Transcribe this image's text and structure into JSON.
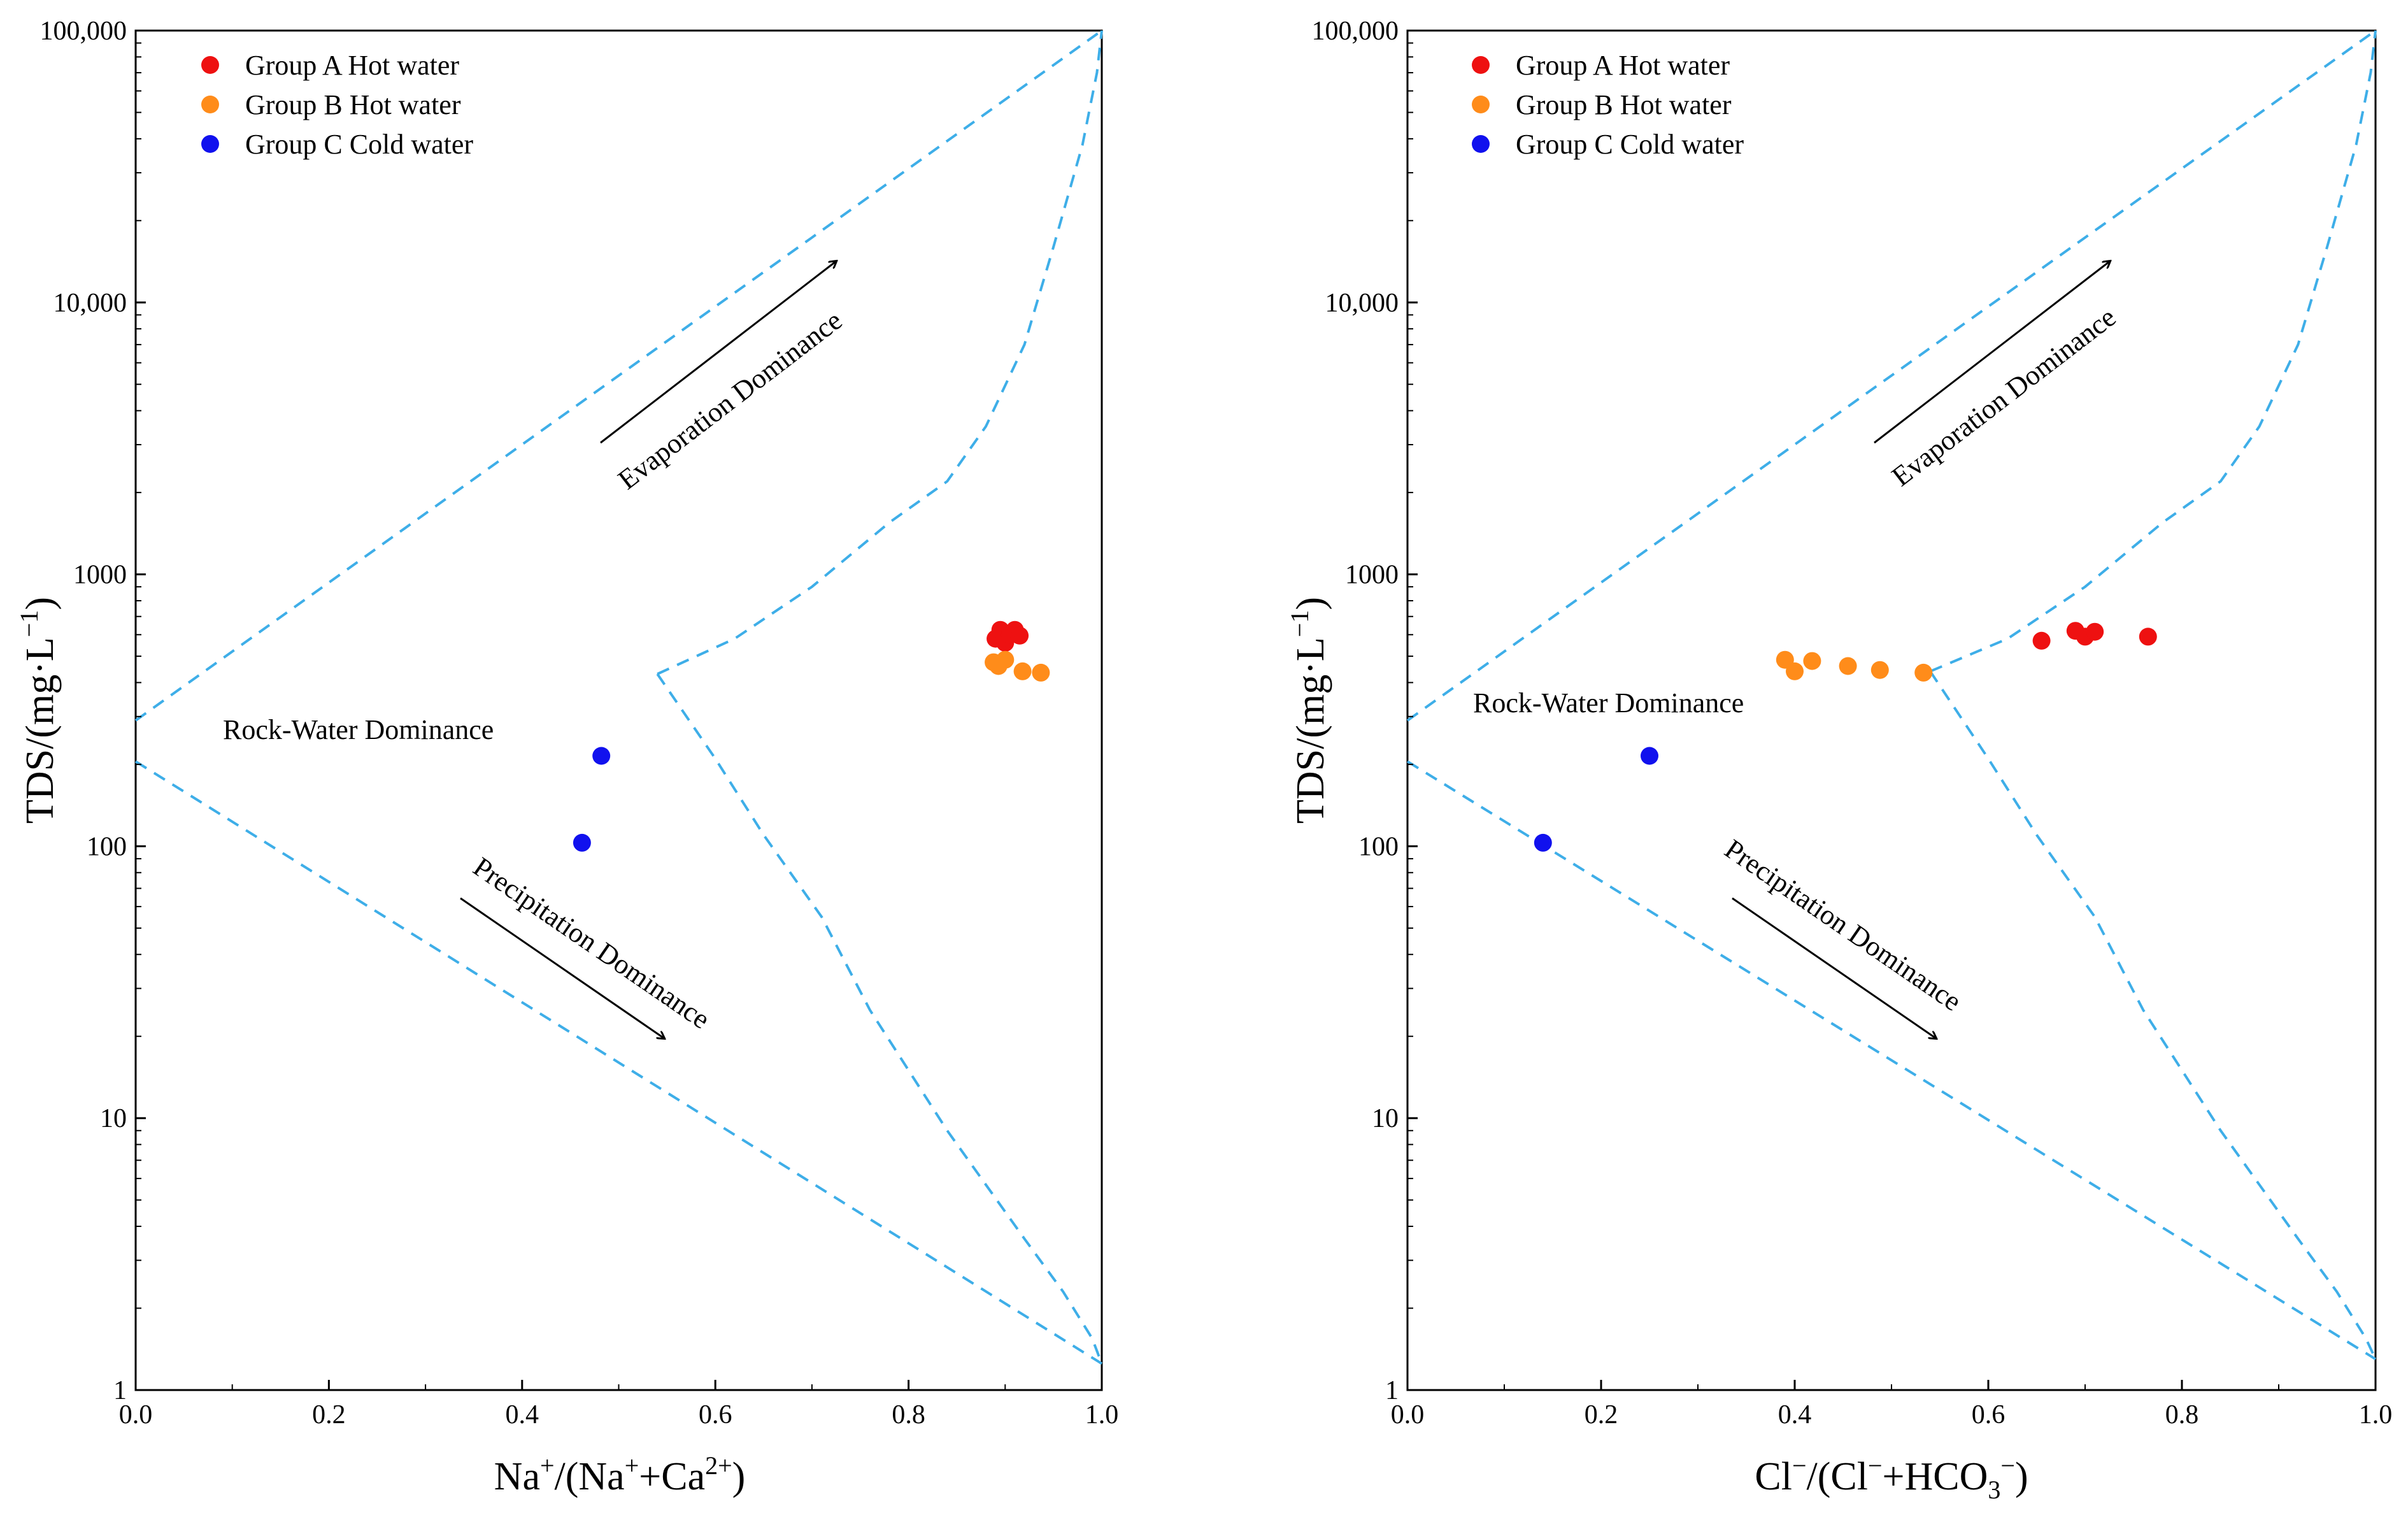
{
  "chart_data": [
    {
      "type": "scatter",
      "title": "",
      "xlabel": {
        "base": "Na",
        "sup1": "+",
        "mid": "/(Na",
        "sup2": "+",
        "mid2": "+Ca",
        "sup3": "2+",
        "end": ")"
      },
      "ylabel": {
        "base": "TDS/(mg·L",
        "sup": "−1",
        "end": ")"
      },
      "xlim": [
        0,
        1
      ],
      "ylim": [
        1,
        100000
      ],
      "yscale": "log",
      "x_ticks": [
        "0.0",
        "0.2",
        "0.4",
        "0.6",
        "0.8",
        "1.0"
      ],
      "y_ticks": [
        "1",
        "10",
        "100",
        "1000",
        "10,000",
        "100,000"
      ],
      "legend_position": "top-left",
      "series": [
        {
          "name": "Group A Hot water",
          "color": "#ee1111",
          "points": [
            [
              0.89,
              580
            ],
            [
              0.895,
              625
            ],
            [
              0.9,
              560
            ],
            [
              0.905,
              600
            ],
            [
              0.91,
              625
            ],
            [
              0.915,
              595
            ]
          ]
        },
        {
          "name": "Group B Hot water",
          "color": "#ff8c1a",
          "points": [
            [
              0.888,
              475
            ],
            [
              0.893,
              460
            ],
            [
              0.9,
              485
            ],
            [
              0.918,
              440
            ],
            [
              0.937,
              435
            ]
          ]
        },
        {
          "name": "Group C Cold water",
          "color": "#1111ee",
          "points": [
            [
              0.482,
              215
            ],
            [
              0.462,
              103
            ]
          ]
        }
      ],
      "boundary": {
        "color": "#3eaee8",
        "upper": [
          [
            0,
            290
          ],
          [
            1.0,
            100000
          ]
        ],
        "lower": [
          [
            0,
            205
          ],
          [
            1.0,
            1.25
          ]
        ],
        "right_upper": [
          [
            0.54,
            430
          ],
          [
            0.62,
            580
          ],
          [
            0.7,
            900
          ],
          [
            0.78,
            1550
          ],
          [
            0.84,
            2200
          ],
          [
            0.88,
            3500
          ],
          [
            0.92,
            7000
          ],
          [
            0.95,
            16000
          ],
          [
            0.98,
            38000
          ],
          [
            0.995,
            70000
          ],
          [
            1.0,
            100000
          ]
        ],
        "right_lower": [
          [
            0.54,
            430
          ],
          [
            0.6,
            210
          ],
          [
            0.65,
            110
          ],
          [
            0.71,
            55
          ],
          [
            0.76,
            25
          ],
          [
            0.84,
            9
          ],
          [
            0.92,
            3.6
          ],
          [
            0.96,
            2.3
          ],
          [
            0.99,
            1.55
          ],
          [
            1.0,
            1.25
          ]
        ]
      },
      "annotations": {
        "evaporation": "Evaporation Dominance",
        "rock": "Rock-Water Dominance",
        "precipitation": "Precipitation Dominance"
      }
    },
    {
      "type": "scatter",
      "title": "",
      "xlabel": {
        "base": "Cl",
        "sup1": "−",
        "mid": "/(Cl",
        "sup2": "−",
        "mid2": "+HCO",
        "sub3": "3",
        "sup3": "−",
        "end": ")"
      },
      "ylabel": {
        "base": "TDS/(mg·L",
        "sup": "−1",
        "end": ")"
      },
      "xlim": [
        0,
        1
      ],
      "ylim": [
        1,
        100000
      ],
      "yscale": "log",
      "x_ticks": [
        "0.0",
        "0.2",
        "0.4",
        "0.6",
        "0.8",
        "1.0"
      ],
      "y_ticks": [
        "1",
        "10",
        "100",
        "1000",
        "10,000",
        "100,000"
      ],
      "legend_position": "top-left",
      "series": [
        {
          "name": "Group A Hot water",
          "color": "#ee1111",
          "points": [
            [
              0.655,
              570
            ],
            [
              0.69,
              620
            ],
            [
              0.7,
              590
            ],
            [
              0.71,
              615
            ],
            [
              0.765,
              590
            ]
          ]
        },
        {
          "name": "Group B Hot water",
          "color": "#ff8c1a",
          "points": [
            [
              0.39,
              485
            ],
            [
              0.4,
              440
            ],
            [
              0.418,
              480
            ],
            [
              0.455,
              460
            ],
            [
              0.488,
              445
            ],
            [
              0.533,
              435
            ]
          ]
        },
        {
          "name": "Group C Cold water",
          "color": "#1111ee",
          "points": [
            [
              0.25,
              215
            ],
            [
              0.14,
              103
            ]
          ]
        }
      ],
      "boundary": {
        "color": "#3eaee8",
        "upper": [
          [
            0,
            290
          ],
          [
            1.0,
            100000
          ]
        ],
        "lower": [
          [
            0,
            205
          ],
          [
            1.0,
            1.3
          ]
        ],
        "right_upper": [
          [
            0.54,
            440
          ],
          [
            0.62,
            580
          ],
          [
            0.7,
            900
          ],
          [
            0.78,
            1550
          ],
          [
            0.84,
            2200
          ],
          [
            0.88,
            3500
          ],
          [
            0.92,
            7000
          ],
          [
            0.95,
            16000
          ],
          [
            0.98,
            38000
          ],
          [
            0.995,
            70000
          ],
          [
            1.0,
            100000
          ]
        ],
        "right_lower": [
          [
            0.54,
            440
          ],
          [
            0.6,
            210
          ],
          [
            0.65,
            110
          ],
          [
            0.71,
            55
          ],
          [
            0.76,
            25
          ],
          [
            0.84,
            9
          ],
          [
            0.92,
            3.6
          ],
          [
            0.96,
            2.3
          ],
          [
            0.99,
            1.55
          ],
          [
            1.0,
            1.3
          ]
        ]
      },
      "annotations": {
        "evaporation": "Evaporation Dominance",
        "rock": "Rock-Water Dominance",
        "precipitation": "Precipitation Dominance"
      }
    }
  ]
}
